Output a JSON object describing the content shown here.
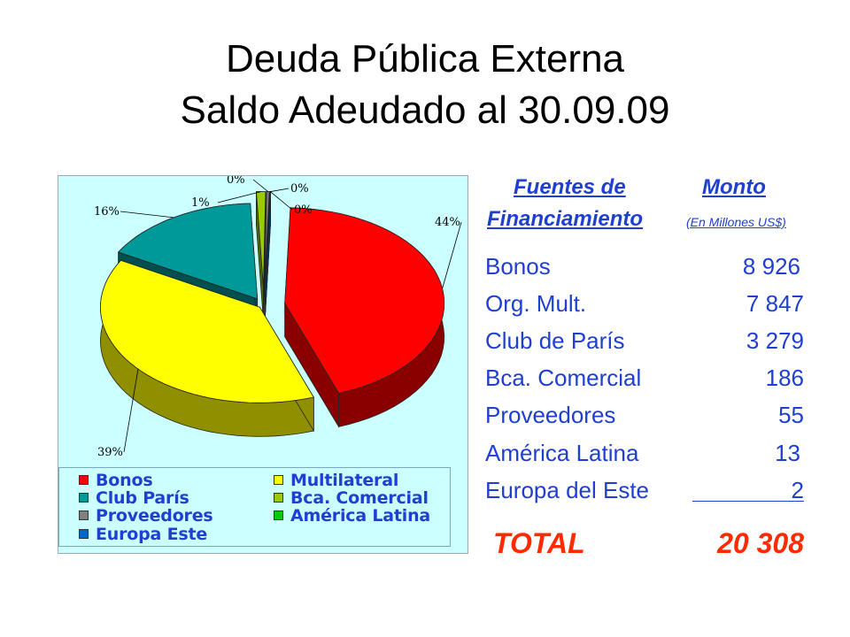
{
  "title_line1": "Deuda Pública Externa",
  "title_line2": "Saldo Adeudado al 30.09.09",
  "table": {
    "header_source_line1": "Fuentes de",
    "header_source_line2": "Financiamiento",
    "header_amount": "Monto",
    "header_unit": "(En Millones US$)",
    "rows": [
      {
        "name": "Bonos",
        "value": "8 926"
      },
      {
        "name": "Org. Mult.",
        "value": "7 847"
      },
      {
        "name": "Club de París",
        "value": "3 279"
      },
      {
        "name": "Bca. Comercial",
        "value": "186"
      },
      {
        "name": "Proveedores",
        "value": "55"
      },
      {
        "name": "América Latina",
        "value": "13"
      },
      {
        "name": "Europa del Este",
        "value": "2"
      }
    ],
    "total_label": "TOTAL",
    "total_value": "20 308"
  },
  "chart_data": {
    "type": "pie",
    "title": "",
    "slices": [
      {
        "label": "Bonos",
        "value": 8926,
        "pct_label": "44%",
        "color": "#ff0000",
        "dark": "#8a0000"
      },
      {
        "label": "Multilateral",
        "value": 7847,
        "pct_label": "39%",
        "color": "#ffff00",
        "dark": "#8f8f00"
      },
      {
        "label": "Club París",
        "value": 3279,
        "pct_label": "16%",
        "color": "#009999",
        "dark": "#004f4f"
      },
      {
        "label": "Bca. Comercial",
        "value": 186,
        "pct_label": "1%",
        "color": "#99cc00",
        "dark": "#4f6a00"
      },
      {
        "label": "Proveedores",
        "value": 55,
        "pct_label": "0%",
        "color": "#808080",
        "dark": "#404040"
      },
      {
        "label": "América Latina",
        "value": 13,
        "pct_label": "0%",
        "color": "#00cc00",
        "dark": "#006600"
      },
      {
        "label": "Europa Este",
        "value": 2,
        "pct_label": "0%",
        "color": "#0066cc",
        "dark": "#003366"
      }
    ],
    "legend": [
      {
        "label": "Bonos",
        "color": "#ff0000"
      },
      {
        "label": "Multilateral",
        "color": "#ffff00"
      },
      {
        "label": "Club París",
        "color": "#009999"
      },
      {
        "label": "Bca. Comercial",
        "color": "#99cc00"
      },
      {
        "label": "Proveedores",
        "color": "#808080"
      },
      {
        "label": "América Latina",
        "color": "#00cc00"
      },
      {
        "label": "Europa Este",
        "color": "#0066cc"
      }
    ],
    "legend_position": "bottom",
    "background": "#ccffff"
  }
}
